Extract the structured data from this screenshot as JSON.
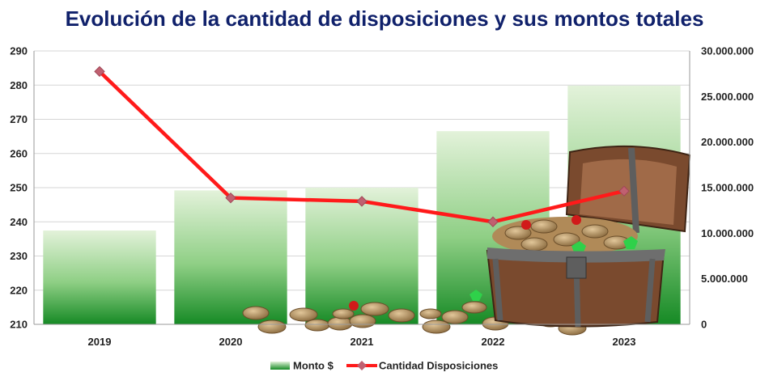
{
  "chart_data": {
    "type": "bar",
    "title": "Evolución de la cantidad de disposiciones y sus montos totales",
    "categories": [
      "2019",
      "2020",
      "2021",
      "2022",
      "2023"
    ],
    "series": [
      {
        "name": "Monto $",
        "type": "bar",
        "axis": "right",
        "values": [
          10300000,
          14700000,
          15000000,
          21200000,
          26200000
        ]
      },
      {
        "name": "Cantidad Disposiciones",
        "type": "line",
        "axis": "left",
        "values": [
          284,
          247,
          246,
          240,
          249
        ]
      }
    ],
    "y_left": {
      "ylim": [
        210,
        290
      ],
      "ticks": [
        "210",
        "220",
        "230",
        "240",
        "250",
        "260",
        "270",
        "280",
        "290"
      ]
    },
    "y_right": {
      "ylim": [
        0,
        30000000
      ],
      "ticks": [
        "0",
        "5.000.000",
        "10.000.000",
        "15.000.000",
        "20.000.000",
        "25.000.000",
        "30.000.000"
      ]
    },
    "grid": true,
    "legend": "bottom",
    "colors": {
      "bar_top": "#dff0d6",
      "bar_bottom": "#1e8f2a",
      "line": "#ff1a1a",
      "marker": "#c06070",
      "title": "#10216b"
    }
  }
}
